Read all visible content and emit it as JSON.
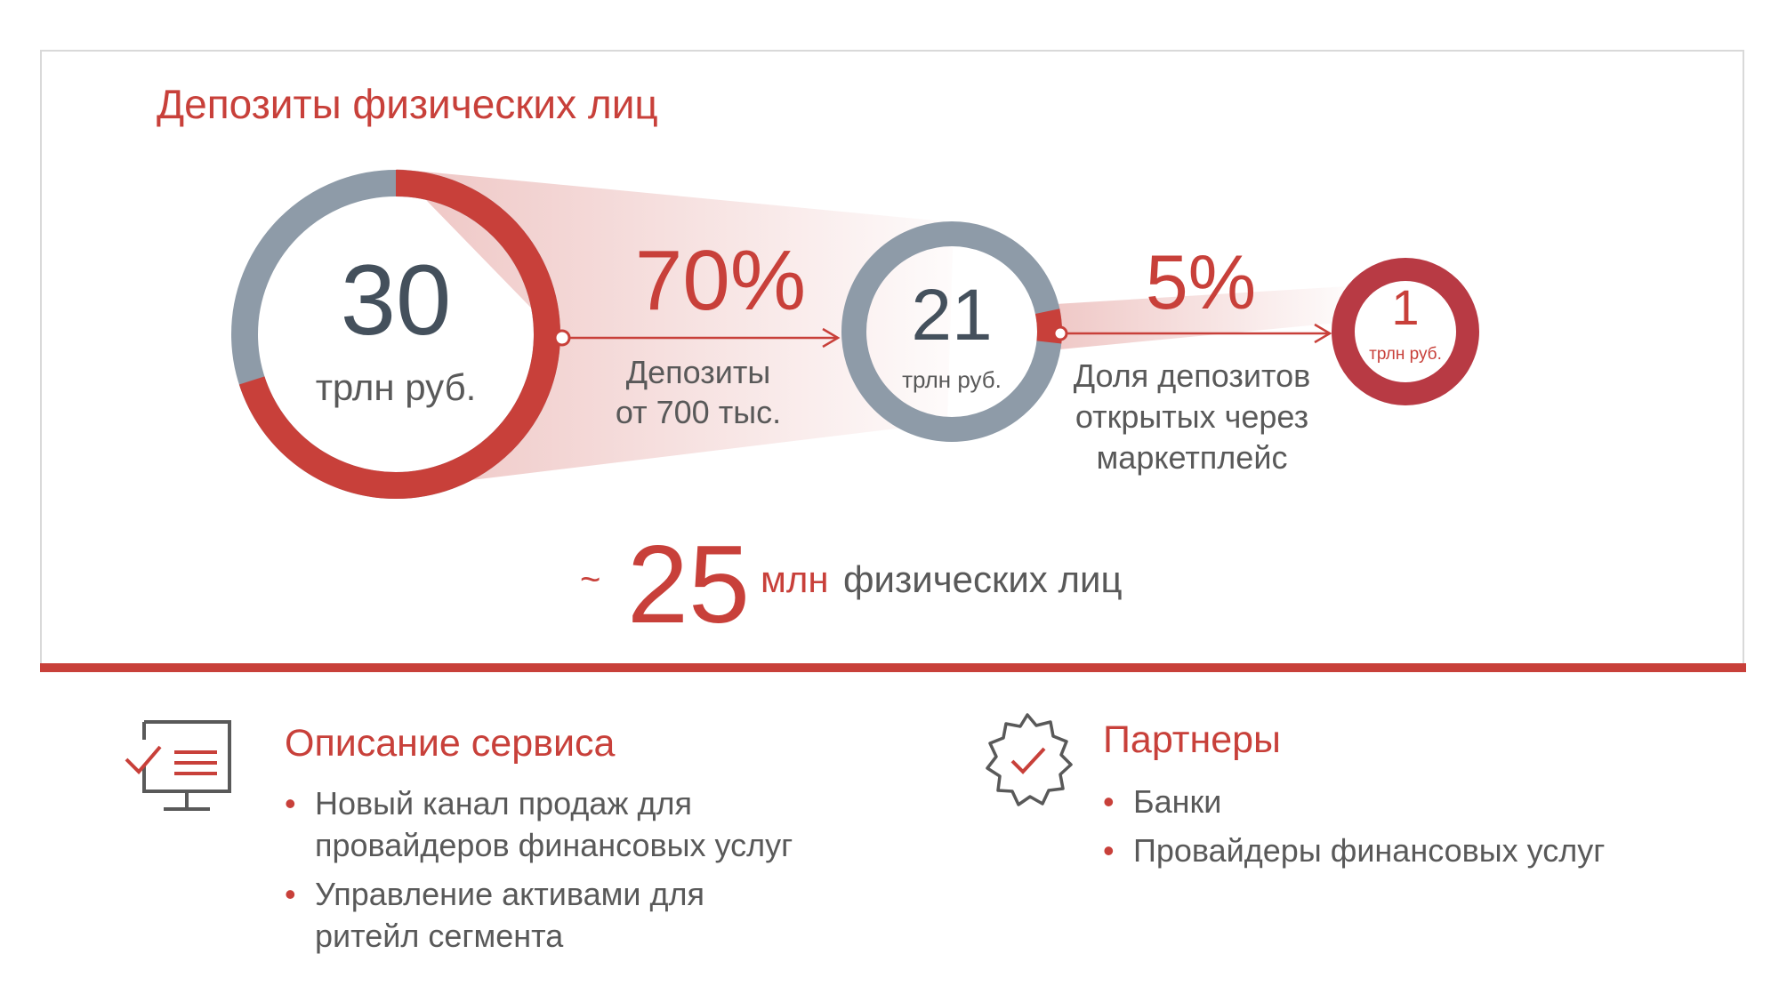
{
  "title": "Депозиты физических лиц",
  "funnel": {
    "big": {
      "value": "30",
      "unit": "трлн руб."
    },
    "mid": {
      "value": "21",
      "unit": "трлн руб."
    },
    "small": {
      "value": "1",
      "unit": "трлн руб."
    },
    "step1": {
      "percent": "70%",
      "line1": "Депозиты",
      "line2": "от 700 тыс."
    },
    "step2": {
      "percent": "5%",
      "line1": "Доля депозитов",
      "line2": "открытых через",
      "line3": "маркетплейс"
    }
  },
  "clients": {
    "tilde": "~",
    "value": "25",
    "unit": "млн",
    "label": "физических лиц"
  },
  "service": {
    "title": "Описание сервиса",
    "icon": "monitor-checklist-icon",
    "items": [
      {
        "line1": "Новый канал продаж для",
        "line2": "провайдеров финансовых услуг"
      },
      {
        "line1": "Управление активами для",
        "line2": "ритейл сегмента"
      }
    ]
  },
  "partners": {
    "title": "Партнеры",
    "icon": "badge-check-icon",
    "items": [
      "Банки",
      "Провайдеры финансовых услуг"
    ]
  },
  "colors": {
    "accent": "#c8403a",
    "ring_gray": "#8e9ba8",
    "text": "#595959",
    "small_ring": "#b83a44"
  }
}
